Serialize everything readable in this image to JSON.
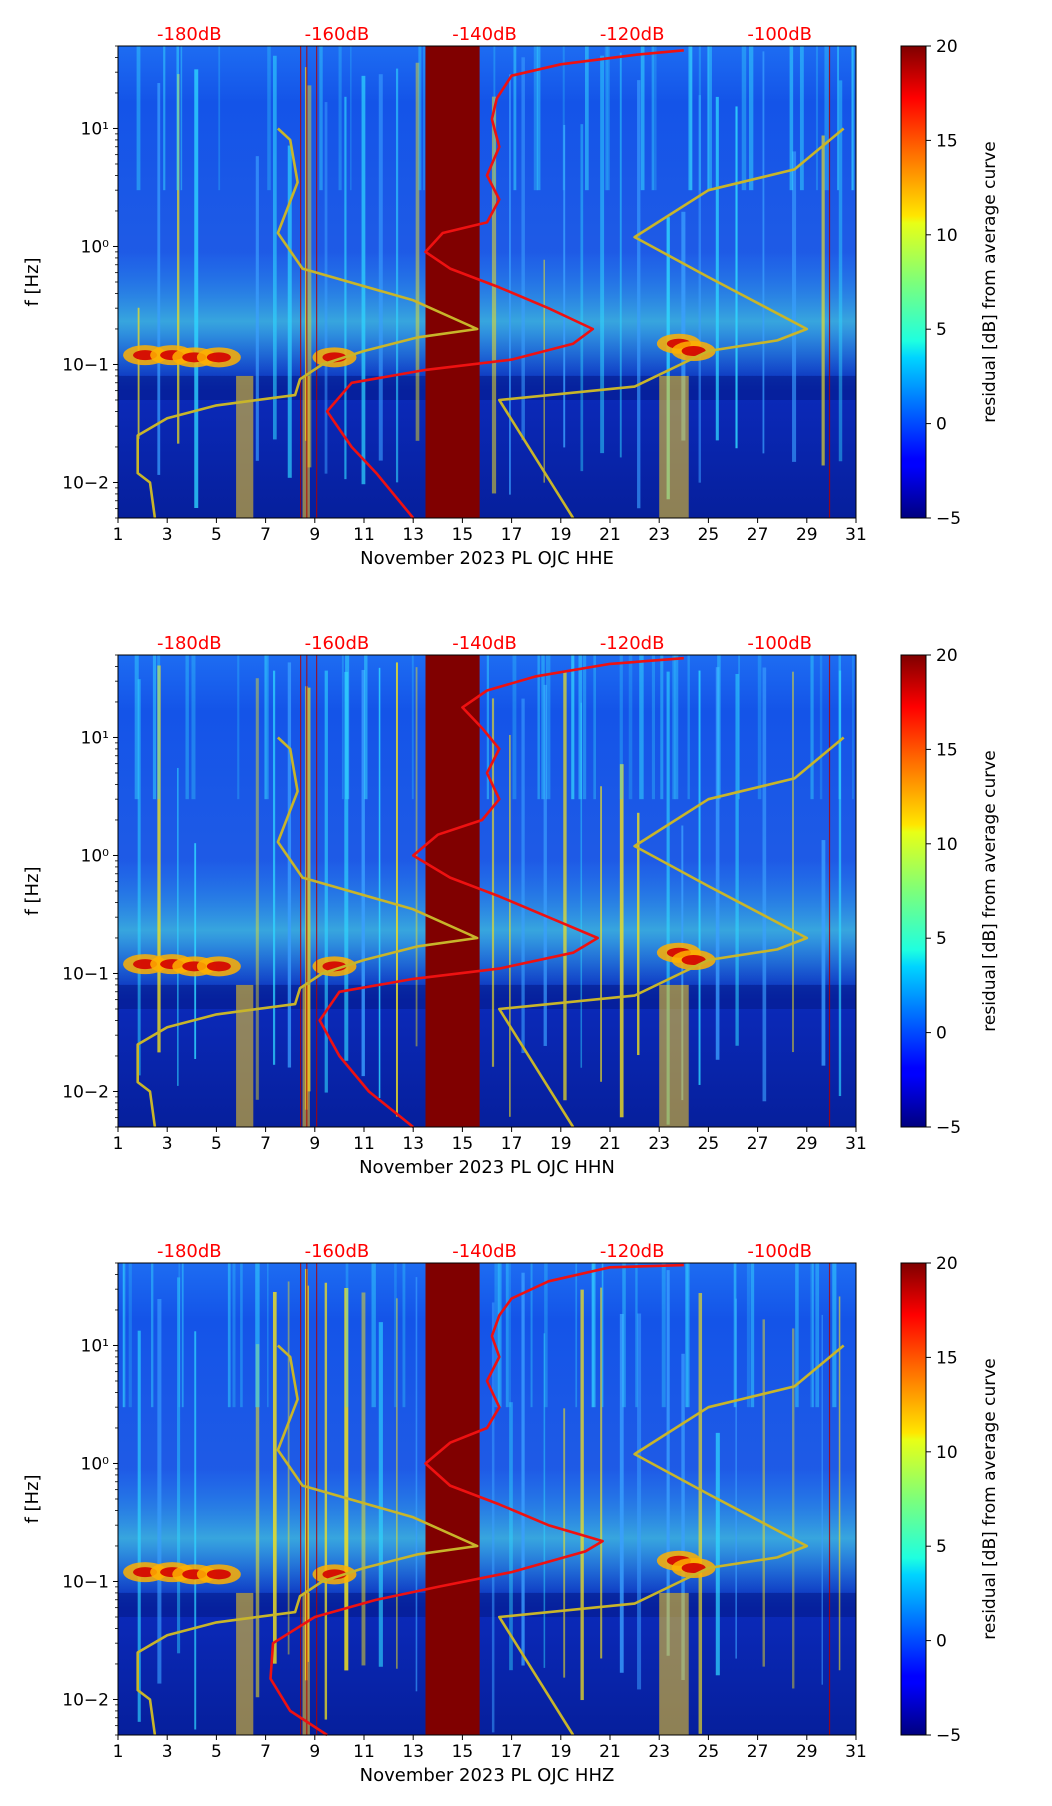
{
  "chart_data": [
    {
      "type": "heatmap",
      "xlabel": "November 2023 PL OJC  HHE",
      "ylabel": "f [Hz]",
      "x_ticks": [
        "1",
        "3",
        "5",
        "7",
        "9",
        "11",
        "13",
        "15",
        "17",
        "19",
        "21",
        "23",
        "25",
        "27",
        "29",
        "31"
      ],
      "y_ticks": [
        "10−2",
        "10−1",
        "10⁰",
        "10¹"
      ],
      "top_ticks": [
        "-180dB",
        "-160dB",
        "-140dB",
        "-120dB",
        "-100dB"
      ],
      "colorbar": {
        "label": "residual [dB] from average curve",
        "ticks": [
          "−5",
          "0",
          "5",
          "10",
          "15",
          "20"
        ],
        "range": [
          -5,
          20
        ]
      },
      "xlim": [
        1,
        31
      ],
      "ylim": [
        0.005,
        50
      ],
      "gap_days": [
        13.5,
        15.7
      ],
      "red_psd_curve": {
        "name": "average PSD curve (top axis, dB)",
        "points": [
          [
            13.0,
            0.005
          ],
          [
            11.5,
            0.012
          ],
          [
            10.5,
            0.02
          ],
          [
            9.5,
            0.04
          ],
          [
            10.5,
            0.07
          ],
          [
            13.5,
            0.09
          ],
          [
            17,
            0.11
          ],
          [
            19.5,
            0.15
          ],
          [
            20.3,
            0.2
          ],
          [
            18.5,
            0.3
          ],
          [
            16.5,
            0.45
          ],
          [
            14.5,
            0.65
          ],
          [
            13.5,
            0.9
          ],
          [
            14.2,
            1.3
          ],
          [
            16,
            1.6
          ],
          [
            16.5,
            2.5
          ],
          [
            16,
            4
          ],
          [
            16.5,
            7
          ],
          [
            16.2,
            12
          ],
          [
            16.4,
            18
          ],
          [
            17,
            28
          ],
          [
            19,
            35
          ],
          [
            22,
            42
          ],
          [
            24,
            46
          ]
        ]
      },
      "yellow_model_curve": {
        "name": "noise model curves",
        "points": [
          [
            2.5,
            0.005
          ],
          [
            2.3,
            0.01
          ],
          [
            1.8,
            0.012
          ],
          [
            1.8,
            0.025
          ],
          [
            3,
            0.035
          ],
          [
            5,
            0.045
          ],
          [
            8.2,
            0.055
          ],
          [
            8.4,
            0.075
          ],
          [
            9.3,
            0.1
          ],
          [
            11,
            0.13
          ],
          [
            13.2,
            0.17
          ],
          [
            15.6,
            0.2
          ],
          [
            13,
            0.35
          ],
          [
            8.5,
            0.65
          ],
          [
            7.5,
            1.3
          ],
          [
            8.3,
            3.5
          ],
          [
            8,
            8
          ],
          [
            7.5,
            10
          ]
        ]
      },
      "yellow_model_curve_2": {
        "points": [
          [
            19.5,
            0.005
          ],
          [
            16.5,
            0.05
          ],
          [
            22,
            0.065
          ],
          [
            25,
            0.13
          ],
          [
            27.8,
            0.16
          ],
          [
            29,
            0.2
          ],
          [
            25,
            0.55
          ],
          [
            22,
            1.2
          ],
          [
            25,
            3
          ],
          [
            28.5,
            4.5
          ],
          [
            30.5,
            10
          ]
        ]
      }
    },
    {
      "type": "heatmap",
      "xlabel": "November 2023 PL OJC  HHN",
      "ylabel": "f [Hz]",
      "x_ticks": [
        "1",
        "3",
        "5",
        "7",
        "9",
        "11",
        "13",
        "15",
        "17",
        "19",
        "21",
        "23",
        "25",
        "27",
        "29",
        "31"
      ],
      "y_ticks": [
        "10−2",
        "10−1",
        "10⁰",
        "10¹"
      ],
      "top_ticks": [
        "-180dB",
        "-160dB",
        "-140dB",
        "-120dB",
        "-100dB"
      ],
      "colorbar": {
        "label": "residual [dB] from average curve",
        "ticks": [
          "−5",
          "0",
          "5",
          "10",
          "15",
          "20"
        ],
        "range": [
          -5,
          20
        ]
      },
      "xlim": [
        1,
        31
      ],
      "ylim": [
        0.005,
        50
      ],
      "gap_days": [
        13.5,
        15.7
      ],
      "red_psd_curve": {
        "points": [
          [
            13.0,
            0.005
          ],
          [
            11.2,
            0.01
          ],
          [
            10,
            0.02
          ],
          [
            9.2,
            0.04
          ],
          [
            10,
            0.07
          ],
          [
            13,
            0.09
          ],
          [
            16.5,
            0.11
          ],
          [
            19.5,
            0.15
          ],
          [
            20.5,
            0.2
          ],
          [
            18.5,
            0.3
          ],
          [
            16.5,
            0.45
          ],
          [
            14.5,
            0.65
          ],
          [
            13,
            1
          ],
          [
            14,
            1.5
          ],
          [
            15.8,
            2
          ],
          [
            16.5,
            3
          ],
          [
            16,
            5
          ],
          [
            16.5,
            8
          ],
          [
            15.8,
            12
          ],
          [
            15,
            18
          ],
          [
            16,
            25
          ],
          [
            18,
            33
          ],
          [
            21,
            42
          ],
          [
            24,
            47
          ]
        ]
      },
      "yellow_model_curve": {
        "points": [
          [
            2.5,
            0.005
          ],
          [
            2.3,
            0.01
          ],
          [
            1.8,
            0.012
          ],
          [
            1.8,
            0.025
          ],
          [
            3,
            0.035
          ],
          [
            5,
            0.045
          ],
          [
            8.2,
            0.055
          ],
          [
            8.4,
            0.075
          ],
          [
            9.3,
            0.1
          ],
          [
            11,
            0.13
          ],
          [
            13.2,
            0.17
          ],
          [
            15.6,
            0.2
          ],
          [
            13,
            0.35
          ],
          [
            8.5,
            0.65
          ],
          [
            7.5,
            1.3
          ],
          [
            8.3,
            3.5
          ],
          [
            8,
            8
          ],
          [
            7.5,
            10
          ]
        ]
      },
      "yellow_model_curve_2": {
        "points": [
          [
            19.5,
            0.005
          ],
          [
            16.5,
            0.05
          ],
          [
            22,
            0.065
          ],
          [
            25,
            0.13
          ],
          [
            27.8,
            0.16
          ],
          [
            29,
            0.2
          ],
          [
            25,
            0.55
          ],
          [
            22,
            1.2
          ],
          [
            25,
            3
          ],
          [
            28.5,
            4.5
          ],
          [
            30.5,
            10
          ]
        ]
      }
    },
    {
      "type": "heatmap",
      "xlabel": "November 2023 PL OJC  HHZ",
      "ylabel": "f [Hz]",
      "x_ticks": [
        "1",
        "3",
        "5",
        "7",
        "9",
        "11",
        "13",
        "15",
        "17",
        "19",
        "21",
        "23",
        "25",
        "27",
        "29",
        "31"
      ],
      "y_ticks": [
        "10−2",
        "10−1",
        "10⁰",
        "10¹"
      ],
      "top_ticks": [
        "-180dB",
        "-160dB",
        "-140dB",
        "-120dB",
        "-100dB"
      ],
      "colorbar": {
        "label": "residual [dB] from average curve",
        "ticks": [
          "−5",
          "0",
          "5",
          "10",
          "15",
          "20"
        ],
        "range": [
          -5,
          20
        ]
      },
      "xlim": [
        1,
        31
      ],
      "ylim": [
        0.005,
        50
      ],
      "gap_days": [
        13.5,
        15.7
      ],
      "red_psd_curve": {
        "points": [
          [
            9.5,
            0.005
          ],
          [
            8,
            0.008
          ],
          [
            7.2,
            0.015
          ],
          [
            7.3,
            0.03
          ],
          [
            9,
            0.05
          ],
          [
            11.5,
            0.07
          ],
          [
            14,
            0.09
          ],
          [
            17,
            0.12
          ],
          [
            20,
            0.18
          ],
          [
            20.7,
            0.22
          ],
          [
            18.5,
            0.3
          ],
          [
            16.5,
            0.45
          ],
          [
            14.5,
            0.65
          ],
          [
            13.5,
            1
          ],
          [
            14.5,
            1.5
          ],
          [
            16,
            2
          ],
          [
            16.5,
            3
          ],
          [
            16,
            5
          ],
          [
            16.5,
            8
          ],
          [
            16.2,
            12
          ],
          [
            16.5,
            18
          ],
          [
            17,
            25
          ],
          [
            18.5,
            35
          ],
          [
            21,
            46
          ],
          [
            24,
            48
          ]
        ]
      },
      "yellow_model_curve": {
        "points": [
          [
            2.5,
            0.005
          ],
          [
            2.3,
            0.01
          ],
          [
            1.8,
            0.012
          ],
          [
            1.8,
            0.025
          ],
          [
            3,
            0.035
          ],
          [
            5,
            0.045
          ],
          [
            8.2,
            0.055
          ],
          [
            8.4,
            0.075
          ],
          [
            9.3,
            0.1
          ],
          [
            11,
            0.13
          ],
          [
            13.2,
            0.17
          ],
          [
            15.6,
            0.2
          ],
          [
            13,
            0.35
          ],
          [
            8.5,
            0.65
          ],
          [
            7.5,
            1.3
          ],
          [
            8.3,
            3.5
          ],
          [
            8,
            8
          ],
          [
            7.5,
            10
          ]
        ]
      },
      "yellow_model_curve_2": {
        "points": [
          [
            19.5,
            0.005
          ],
          [
            16.5,
            0.05
          ],
          [
            22,
            0.065
          ],
          [
            25,
            0.13
          ],
          [
            27.8,
            0.16
          ],
          [
            29,
            0.2
          ],
          [
            25,
            0.55
          ],
          [
            22,
            1.2
          ],
          [
            25,
            3
          ],
          [
            28.5,
            4.5
          ],
          [
            30.5,
            10
          ]
        ]
      }
    }
  ],
  "colors": {
    "red_curve": "#ee1111",
    "yellow_curve": "#c8b52a",
    "gap_fill": "#800000",
    "top_tick_text": "#ff0000",
    "background_field": "#0a2cd8"
  }
}
